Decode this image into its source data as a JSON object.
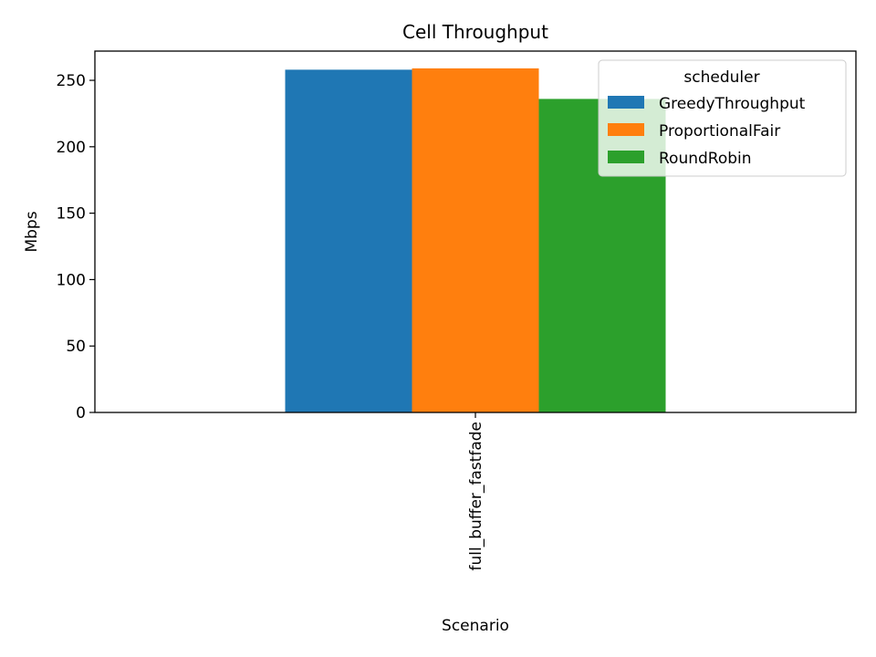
{
  "chart_data": {
    "type": "bar",
    "title": "Cell Throughput",
    "xlabel": "Scenario",
    "ylabel": "Mbps",
    "categories": [
      "full_buffer_fastfade"
    ],
    "series": [
      {
        "name": "GreedyThroughput",
        "values": [
          258
        ],
        "color": "#1f77b4"
      },
      {
        "name": "ProportionalFair",
        "values": [
          259
        ],
        "color": "#ff7f0e"
      },
      {
        "name": "RoundRobin",
        "values": [
          236
        ],
        "color": "#2ca02c"
      }
    ],
    "ylim": [
      0,
      272
    ],
    "yticks": [
      0,
      50,
      100,
      150,
      200,
      250
    ],
    "legend": {
      "title": "scheduler",
      "placement": "top-right"
    },
    "grid": false
  }
}
